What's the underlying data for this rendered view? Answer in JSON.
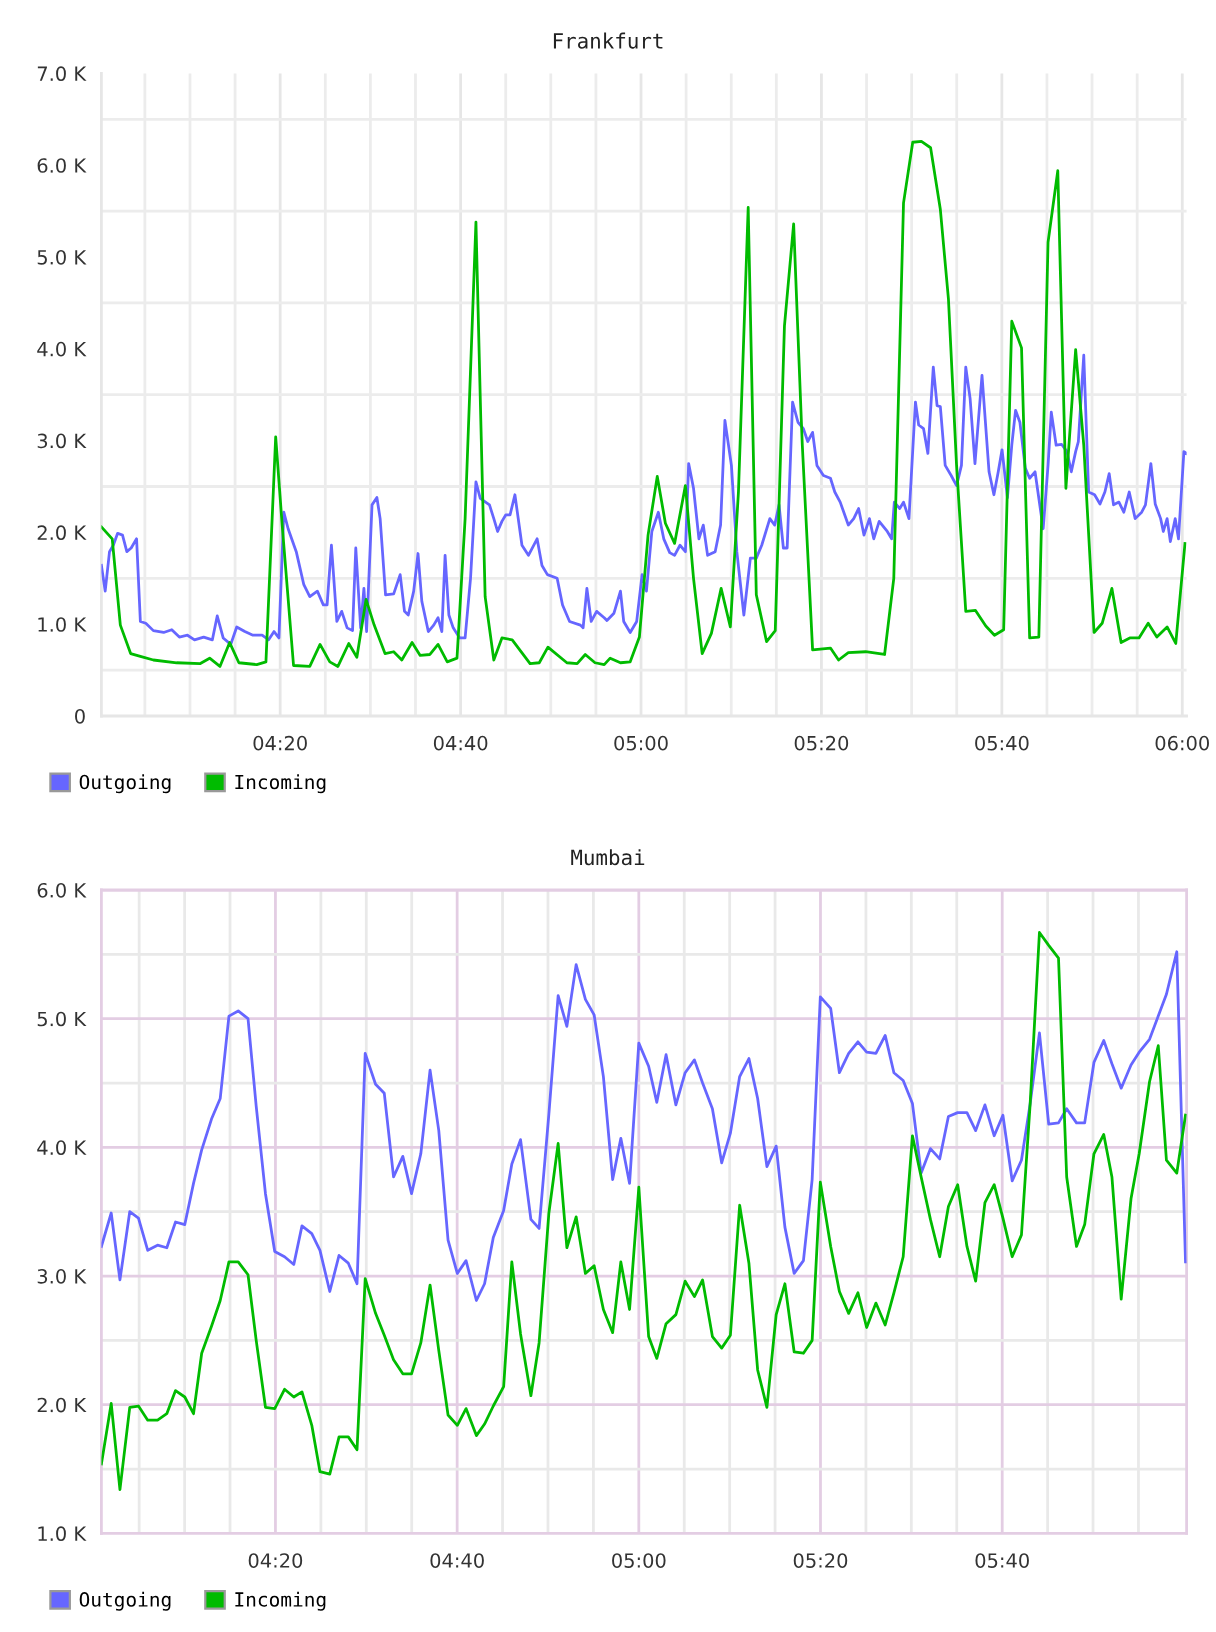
{
  "chart_data": [
    {
      "type": "line",
      "title": "Frankfurt",
      "xlim": [
        4.003,
        6.008
      ],
      "ylim": [
        0,
        7000
      ],
      "xticks": [
        {
          "value": 4.0833,
          "label": null
        },
        {
          "value": 4.1667,
          "label": null
        },
        {
          "value": 4.25,
          "label": null
        },
        {
          "value": 4.3333,
          "label": "04:20"
        },
        {
          "value": 4.4167,
          "label": null
        },
        {
          "value": 4.5,
          "label": null
        },
        {
          "value": 4.5833,
          "label": null
        },
        {
          "value": 4.6667,
          "label": "04:40"
        },
        {
          "value": 4.75,
          "label": null
        },
        {
          "value": 4.8333,
          "label": null
        },
        {
          "value": 4.9167,
          "label": null
        },
        {
          "value": 5.0,
          "label": "05:00"
        },
        {
          "value": 5.0833,
          "label": null
        },
        {
          "value": 5.1667,
          "label": null
        },
        {
          "value": 5.25,
          "label": null
        },
        {
          "value": 5.3333,
          "label": "05:20"
        },
        {
          "value": 5.4167,
          "label": null
        },
        {
          "value": 5.5,
          "label": null
        },
        {
          "value": 5.5833,
          "label": null
        },
        {
          "value": 5.6667,
          "label": "05:40"
        },
        {
          "value": 5.75,
          "label": null
        },
        {
          "value": 5.8333,
          "label": null
        },
        {
          "value": 5.9167,
          "label": null
        },
        {
          "value": 6.0,
          "label": "06:00"
        }
      ],
      "yticks": [
        0,
        {
          "value": 500,
          "label": null
        },
        {
          "value": 1000,
          "label": "1.0 K"
        },
        {
          "value": 1500,
          "label": null
        },
        {
          "value": 2000,
          "label": "2.0 K"
        },
        {
          "value": 2500,
          "label": null
        },
        {
          "value": 3000,
          "label": "3.0 K"
        },
        {
          "value": 3500,
          "label": null
        },
        {
          "value": 4000,
          "label": "4.0 K"
        },
        {
          "value": 4500,
          "label": null
        },
        {
          "value": 5000,
          "label": "5.0 K"
        },
        {
          "value": 5500,
          "label": null
        },
        {
          "value": 6000,
          "label": "6.0 K"
        },
        {
          "value": 6500,
          "label": null
        },
        {
          "value": 7000,
          "label": "7.0 K"
        }
      ],
      "grid": true,
      "legend": "bottom left",
      "series": [
        {
          "name": "Outgoing",
          "color": "#6666ff",
          "x": [
            4.003,
            4.01,
            4.018,
            4.025,
            4.033,
            4.042,
            4.05,
            4.058,
            4.068,
            4.075,
            4.085,
            4.099,
            4.118,
            4.133,
            4.147,
            4.162,
            4.175,
            4.192,
            4.208,
            4.217,
            4.228,
            4.242,
            4.253,
            4.268,
            4.283,
            4.3,
            4.312,
            4.322,
            4.331,
            4.34,
            4.348,
            4.363,
            4.377,
            4.388,
            4.402,
            4.413,
            4.42,
            4.428,
            4.438,
            4.447,
            4.457,
            4.467,
            4.473,
            4.482,
            4.488,
            4.493,
            4.503,
            4.512,
            4.518,
            4.528,
            4.543,
            4.555,
            4.563,
            4.57,
            4.58,
            4.588,
            4.595,
            4.607,
            4.617,
            4.625,
            4.632,
            4.638,
            4.645,
            4.653,
            4.665,
            4.675,
            4.685,
            4.695,
            4.703,
            4.72,
            4.728,
            4.735,
            4.743,
            4.75,
            4.758,
            4.767,
            4.78,
            4.792,
            4.808,
            4.817,
            4.827,
            4.845,
            4.855,
            4.868,
            4.888,
            4.893,
            4.9,
            4.908,
            4.918,
            4.932,
            4.937,
            4.95,
            4.962,
            4.968,
            4.98,
            4.992,
            5.002,
            5.01,
            5.02,
            5.032,
            5.042,
            5.053,
            5.062,
            5.072,
            5.082,
            5.088,
            5.097,
            5.107,
            5.115,
            5.123,
            5.137,
            5.147,
            5.155,
            5.167,
            5.177,
            5.19,
            5.202,
            5.213,
            5.223,
            5.238,
            5.247,
            5.255,
            5.263,
            5.27,
            5.28,
            5.29,
            5.3,
            5.308,
            5.317,
            5.325,
            5.337,
            5.35,
            5.358,
            5.368,
            5.383,
            5.393,
            5.402,
            5.412,
            5.422,
            5.43,
            5.44,
            5.455,
            5.463,
            5.468,
            5.478,
            5.485,
            5.495,
            5.507,
            5.513,
            5.522,
            5.53,
            5.54,
            5.547,
            5.553,
            5.562,
            5.573,
            5.583,
            5.592,
            5.6,
            5.608,
            5.617,
            5.63,
            5.643,
            5.652,
            5.66,
            5.667,
            5.677,
            5.685,
            5.692,
            5.7,
            5.71,
            5.718,
            5.728,
            5.743,
            5.752,
            5.758,
            5.767,
            5.777,
            5.787,
            5.795,
            5.803,
            5.808,
            5.818,
            5.827,
            5.838,
            5.848,
            5.857,
            5.865,
            5.873,
            5.883,
            5.892,
            5.902,
            5.913,
            5.925,
            5.932,
            5.942,
            5.95,
            5.96,
            5.965,
            5.972,
            5.978,
            5.987,
            5.993,
            6.003,
            6.008
          ],
          "values": [
            1640,
            1360,
            1790,
            1860,
            1990,
            1970,
            1790,
            1830,
            1930,
            1030,
            1010,
            930,
            910,
            940,
            860,
            880,
            830,
            860,
            830,
            1090,
            850,
            780,
            970,
            920,
            880,
            880,
            830,
            920,
            850,
            2220,
            2040,
            1790,
            1430,
            1300,
            1360,
            1210,
            1210,
            1860,
            1030,
            1140,
            960,
            930,
            1830,
            960,
            1390,
            920,
            2300,
            2380,
            2150,
            1320,
            1330,
            1540,
            1140,
            1100,
            1360,
            1770,
            1250,
            920,
            990,
            1070,
            920,
            1750,
            1100,
            960,
            850,
            850,
            1500,
            2550,
            2370,
            2300,
            2150,
            2010,
            2120,
            2190,
            2190,
            2410,
            1860,
            1750,
            1930,
            1640,
            1540,
            1500,
            1210,
            1030,
            990,
            960,
            1390,
            1030,
            1140,
            1070,
            1040,
            1120,
            1360,
            1030,
            910,
            1030,
            1540,
            1360,
            2010,
            2220,
            1930,
            1780,
            1750,
            1860,
            1790,
            2750,
            2480,
            1930,
            2080,
            1750,
            1790,
            2080,
            3220,
            2730,
            1790,
            1100,
            1720,
            1720,
            1860,
            2150,
            2080,
            2300,
            1830,
            1830,
            3420,
            3200,
            3130,
            2990,
            3090,
            2730,
            2620,
            2590,
            2440,
            2330,
            2080,
            2150,
            2260,
            1970,
            2150,
            1930,
            2120,
            2010,
            1930,
            2330,
            2260,
            2330,
            2150,
            3420,
            3170,
            3130,
            2860,
            3800,
            3380,
            3370,
            2730,
            2620,
            2510,
            2730,
            3800,
            3460,
            2750,
            3710,
            2660,
            2410,
            2660,
            2900,
            2380,
            2950,
            3330,
            3200,
            2700,
            2590,
            2660,
            2040,
            2730,
            3310,
            2950,
            2960,
            2880,
            2660,
            2880,
            2990,
            3930,
            2440,
            2410,
            2310,
            2440,
            2640,
            2300,
            2330,
            2220,
            2440,
            2150,
            2220,
            2300,
            2750,
            2310,
            2150,
            2010,
            2150,
            1900,
            2150,
            1930,
            2880,
            2860
          ]
        },
        {
          "name": "Incoming",
          "color": "#00bb00",
          "x": [
            4.003,
            4.023,
            4.038,
            4.057,
            4.075,
            4.099,
            4.142,
            4.185,
            4.203,
            4.222,
            4.24,
            4.257,
            4.29,
            4.307,
            4.325,
            4.337,
            4.358,
            4.388,
            4.407,
            4.425,
            4.44,
            4.46,
            4.475,
            4.492,
            4.507,
            4.527,
            4.543,
            4.558,
            4.577,
            4.592,
            4.61,
            4.625,
            4.642,
            4.66,
            4.675,
            4.695,
            4.712,
            4.728,
            4.743,
            4.762,
            4.795,
            4.812,
            4.828,
            4.863,
            4.882,
            4.897,
            4.915,
            4.932,
            4.943,
            4.962,
            4.98,
            4.997,
            5.013,
            5.03,
            5.045,
            5.062,
            5.082,
            5.097,
            5.113,
            5.13,
            5.148,
            5.165,
            5.18,
            5.198,
            5.213,
            5.232,
            5.248,
            5.265,
            5.282,
            5.298,
            5.317,
            5.35,
            5.365,
            5.383,
            5.415,
            5.45,
            5.467,
            5.485,
            5.502,
            5.518,
            5.535,
            5.553,
            5.568,
            5.583,
            5.6,
            5.618,
            5.637,
            5.653,
            5.67,
            5.685,
            5.703,
            5.718,
            5.735,
            5.752,
            5.77,
            5.785,
            5.803,
            5.818,
            5.837,
            5.852,
            5.87,
            5.887,
            5.903,
            5.92,
            5.937,
            5.953,
            5.972,
            5.988,
            6.005
          ],
          "values": [
            2060,
            1930,
            990,
            680,
            650,
            610,
            580,
            570,
            630,
            540,
            800,
            580,
            560,
            590,
            3040,
            2080,
            550,
            540,
            780,
            590,
            540,
            790,
            640,
            1270,
            990,
            680,
            700,
            610,
            800,
            660,
            670,
            780,
            590,
            630,
            2150,
            5380,
            1300,
            610,
            850,
            830,
            570,
            580,
            750,
            580,
            570,
            670,
            580,
            560,
            630,
            580,
            590,
            860,
            1970,
            2610,
            2100,
            1880,
            2510,
            1500,
            680,
            900,
            1390,
            970,
            2440,
            5540,
            1320,
            810,
            930,
            4250,
            5360,
            2950,
            720,
            740,
            610,
            690,
            700,
            670,
            1500,
            5590,
            6250,
            6260,
            6190,
            5520,
            4540,
            2730,
            1140,
            1150,
            980,
            880,
            940,
            4300,
            4010,
            850,
            860,
            5160,
            5940,
            2480,
            3990,
            2950,
            910,
            1010,
            1390,
            800,
            850,
            850,
            1010,
            860,
            970,
            790,
            1880
          ]
        }
      ]
    },
    {
      "type": "line",
      "title": "Mumbai",
      "xlim": [
        4.014,
        6.005
      ],
      "ylim": [
        1000,
        6000
      ],
      "xticks": [
        {
          "value": 4.0833,
          "label": null
        },
        {
          "value": 4.1667,
          "label": null
        },
        {
          "value": 4.25,
          "label": null
        },
        {
          "value": 4.3333,
          "label": "04:20"
        },
        {
          "value": 4.4167,
          "label": null
        },
        {
          "value": 4.5,
          "label": null
        },
        {
          "value": 4.5833,
          "label": null
        },
        {
          "value": 4.6667,
          "label": "04:40"
        },
        {
          "value": 4.75,
          "label": null
        },
        {
          "value": 4.8333,
          "label": null
        },
        {
          "value": 4.9167,
          "label": null
        },
        {
          "value": 5.0,
          "label": "05:00"
        },
        {
          "value": 5.0833,
          "label": null
        },
        {
          "value": 5.1667,
          "label": null
        },
        {
          "value": 5.25,
          "label": null
        },
        {
          "value": 5.3333,
          "label": "05:20"
        },
        {
          "value": 5.4167,
          "label": null
        },
        {
          "value": 5.5,
          "label": null
        },
        {
          "value": 5.5833,
          "label": null
        },
        {
          "value": 5.6667,
          "label": "05:40"
        },
        {
          "value": 5.75,
          "label": null
        },
        {
          "value": 5.8333,
          "label": null
        },
        {
          "value": 5.9167,
          "label": null
        }
      ],
      "yticks": [
        {
          "value": 1000,
          "label": "1.0 K"
        },
        {
          "value": 1500,
          "label": null
        },
        {
          "value": 2000,
          "label": "2.0 K"
        },
        {
          "value": 2500,
          "label": null
        },
        {
          "value": 3000,
          "label": "3.0 K"
        },
        {
          "value": 3500,
          "label": null
        },
        {
          "value": 4000,
          "label": "4.0 K"
        },
        {
          "value": 4500,
          "label": null
        },
        {
          "value": 5000,
          "label": "5.0 K"
        },
        {
          "value": 5500,
          "label": null
        },
        {
          "value": 6000,
          "label": "6.0 K"
        }
      ],
      "grid": true,
      "legend": "bottom left",
      "x": [
        4.014,
        4.032,
        4.048,
        4.066,
        4.082,
        4.099,
        4.117,
        4.134,
        4.15,
        4.167,
        4.183,
        4.198,
        4.216,
        4.232,
        4.248,
        4.265,
        4.283,
        4.298,
        4.315,
        4.332,
        4.35,
        4.367,
        4.382,
        4.4,
        4.415,
        4.433,
        4.45,
        4.467,
        4.483,
        4.498,
        4.517,
        4.533,
        4.55,
        4.567,
        4.583,
        4.6,
        4.617,
        4.633,
        4.65,
        4.667,
        4.683,
        4.702,
        4.717,
        4.733,
        4.752,
        4.767,
        4.783,
        4.802,
        4.817,
        4.835,
        4.852,
        4.868,
        4.885,
        4.902,
        4.918,
        4.935,
        4.952,
        4.967,
        4.983,
        5.0,
        5.018,
        5.033,
        5.05,
        5.068,
        5.085,
        5.102,
        5.117,
        5.135,
        5.152,
        5.168,
        5.185,
        5.202,
        5.218,
        5.235,
        5.252,
        5.268,
        5.285,
        5.302,
        5.318,
        5.333,
        5.352,
        5.368,
        5.385,
        5.402,
        5.418,
        5.435,
        5.452,
        5.468,
        5.485,
        5.502,
        5.518,
        5.535,
        5.552,
        5.568,
        5.585,
        5.602,
        5.618,
        5.635,
        5.652,
        5.668,
        5.685,
        5.702,
        5.718,
        5.735,
        5.752,
        5.77,
        5.785,
        5.803,
        5.818,
        5.835,
        5.853,
        5.868,
        5.885,
        5.903,
        5.918,
        5.937,
        5.953,
        5.968,
        5.987,
        6.003
      ],
      "series": [
        {
          "name": "Outgoing",
          "color": "#6666ff",
          "values": [
            3230,
            3490,
            2970,
            3500,
            3450,
            3200,
            3240,
            3220,
            3420,
            3400,
            3720,
            3980,
            4220,
            4380,
            5020,
            5060,
            5000,
            4320,
            3640,
            3190,
            3150,
            3090,
            3390,
            3330,
            3200,
            2880,
            3160,
            3100,
            2940,
            4730,
            4490,
            4420,
            3770,
            3930,
            3640,
            3950,
            4600,
            4130,
            3280,
            3020,
            3120,
            2810,
            2940,
            3300,
            3510,
            3870,
            4060,
            3440,
            3370,
            4260,
            5180,
            4940,
            5420,
            5150,
            5030,
            4550,
            3750,
            4070,
            3720,
            4810,
            4630,
            4350,
            4720,
            4330,
            4580,
            4680,
            4500,
            4300,
            3880,
            4110,
            4550,
            4690,
            4380,
            3850,
            4010,
            3380,
            3020,
            3120,
            3750,
            5170,
            5080,
            4580,
            4730,
            4820,
            4740,
            4730,
            4870,
            4580,
            4520,
            4340,
            3800,
            3990,
            3910,
            4240,
            4270,
            4270,
            4130,
            4330,
            4090,
            4250,
            3740,
            3900,
            4340,
            4890,
            4180,
            4190,
            4300,
            4190,
            4190,
            4660,
            4830,
            4650,
            4460,
            4640,
            4740,
            4840,
            5020,
            5190,
            5520,
            3110
          ]
        },
        {
          "name": "Incoming",
          "color": "#00bb00",
          "values": [
            1540,
            2010,
            1340,
            1980,
            1990,
            1880,
            1880,
            1930,
            2110,
            2060,
            1930,
            2400,
            2610,
            2810,
            3110,
            3110,
            3010,
            2500,
            1980,
            1970,
            2120,
            2060,
            2100,
            1840,
            1480,
            1460,
            1750,
            1750,
            1650,
            2980,
            2710,
            2540,
            2350,
            2240,
            2240,
            2480,
            2930,
            2420,
            1920,
            1840,
            1970,
            1760,
            1850,
            1990,
            2140,
            3110,
            2550,
            2070,
            2480,
            3490,
            4030,
            3220,
            3460,
            3020,
            3080,
            2740,
            2560,
            3110,
            2740,
            3690,
            2530,
            2360,
            2630,
            2700,
            2960,
            2840,
            2970,
            2530,
            2440,
            2540,
            3550,
            3100,
            2270,
            1980,
            2700,
            2940,
            2410,
            2400,
            2500,
            3730,
            3230,
            2880,
            2710,
            2870,
            2600,
            2790,
            2620,
            2870,
            3150,
            4090,
            3770,
            3440,
            3150,
            3540,
            3710,
            3230,
            2960,
            3570,
            3710,
            3450,
            3150,
            3320,
            4340,
            5670,
            5570,
            5470,
            3770,
            3230,
            3400,
            3950,
            4100,
            3770,
            2820,
            3600,
            3950,
            4510,
            4790,
            3900,
            3800,
            4250
          ]
        }
      ]
    }
  ]
}
